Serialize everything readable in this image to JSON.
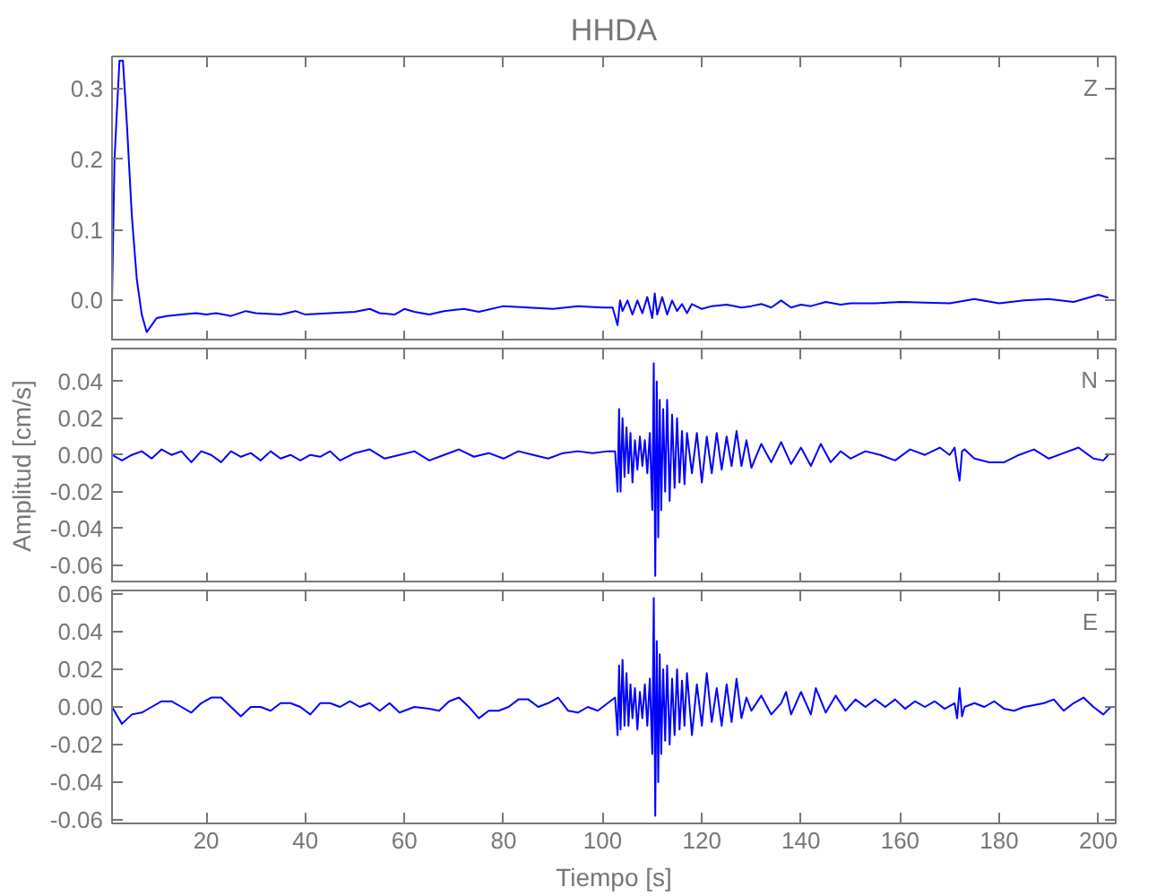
{
  "chart_data": [
    {
      "type": "line",
      "title": "HHDA",
      "annotations": [
        "Z"
      ],
      "color": "#0000ff",
      "tick_labels": "y",
      "xlim": [
        1,
        203.5
      ],
      "xticks": [
        20,
        40,
        60,
        80,
        100,
        120,
        140,
        160,
        180,
        200
      ],
      "ylim": [
        -0.058,
        0.346
      ],
      "yticks": [
        {
          "value": 0,
          "label": "0.0"
        },
        {
          "value": 0.1,
          "label": "0.1"
        },
        {
          "value": 0.2,
          "label": "0.2"
        },
        {
          "value": 0.3,
          "label": "0.3"
        }
      ],
      "x": [
        1,
        1.5,
        2.5,
        3.2,
        4,
        5,
        6,
        7,
        8,
        9,
        10,
        12,
        15,
        18,
        20,
        22,
        25,
        28,
        30,
        35,
        38,
        40,
        45,
        50,
        53,
        55,
        58,
        60,
        62,
        65,
        68,
        72,
        75,
        80,
        85,
        90,
        95,
        100,
        102,
        103,
        103.5,
        104,
        105,
        106,
        107,
        108,
        109,
        110,
        110.5,
        111,
        112,
        113,
        114,
        115,
        116,
        117,
        118,
        120,
        122,
        125,
        128,
        130,
        132,
        134,
        136,
        138,
        140,
        142,
        145,
        148,
        150,
        155,
        160,
        165,
        170,
        175,
        180,
        185,
        190,
        195,
        200,
        202
      ],
      "values": [
        0.0,
        0.2,
        0.34,
        0.34,
        0.25,
        0.12,
        0.03,
        -0.02,
        -0.045,
        -0.035,
        -0.025,
        -0.022,
        -0.02,
        -0.018,
        -0.02,
        -0.018,
        -0.022,
        -0.015,
        -0.018,
        -0.02,
        -0.015,
        -0.02,
        -0.018,
        -0.016,
        -0.012,
        -0.018,
        -0.02,
        -0.012,
        -0.016,
        -0.02,
        -0.015,
        -0.012,
        -0.016,
        -0.008,
        -0.01,
        -0.012,
        -0.008,
        -0.01,
        -0.01,
        -0.035,
        0.0,
        -0.015,
        0.0,
        -0.02,
        0.0,
        -0.018,
        0.005,
        -0.025,
        0.01,
        -0.02,
        0.005,
        -0.02,
        0.0,
        -0.015,
        -0.005,
        -0.018,
        -0.005,
        -0.012,
        -0.008,
        -0.006,
        -0.01,
        -0.008,
        -0.005,
        -0.01,
        0.0,
        -0.01,
        -0.006,
        -0.008,
        -0.002,
        -0.006,
        -0.004,
        -0.004,
        -0.002,
        -0.003,
        -0.004,
        0.002,
        -0.004,
        0.0,
        0.002,
        -0.002,
        0.008,
        0.004
      ]
    },
    {
      "type": "line",
      "ylabel": "Amplitud [cm/s]",
      "annotations": [
        "N"
      ],
      "color": "#0000ff",
      "tick_labels": "y",
      "xlim": [
        1,
        203.5
      ],
      "xticks": [
        20,
        40,
        60,
        80,
        100,
        120,
        140,
        160,
        180,
        200
      ],
      "ylim": [
        -0.07,
        0.058
      ],
      "yticks": [
        {
          "value": -0.06,
          "label": "-0.06"
        },
        {
          "value": -0.04,
          "label": "-0.04"
        },
        {
          "value": -0.02,
          "label": "-0.02"
        },
        {
          "value": 0,
          "label": "0.00"
        },
        {
          "value": 0.02,
          "label": "0.02"
        },
        {
          "value": 0.04,
          "label": "0.04"
        }
      ],
      "x": [
        1,
        3,
        5,
        7,
        9,
        11,
        13,
        15,
        17,
        19,
        21,
        23,
        25,
        27,
        29,
        31,
        33,
        35,
        37,
        39,
        41,
        43,
        45,
        47,
        50,
        53,
        56,
        59,
        62,
        65,
        68,
        71,
        74,
        77,
        80,
        83,
        86,
        89,
        92,
        95,
        98,
        101,
        102.5,
        103,
        103.3,
        103.6,
        104,
        104.4,
        104.8,
        105.2,
        105.6,
        106,
        106.5,
        107,
        107.5,
        108,
        108.5,
        109,
        109.5,
        110,
        110.3,
        110.6,
        110.9,
        111.2,
        111.5,
        111.8,
        112.2,
        112.6,
        113,
        113.5,
        114,
        114.5,
        115,
        115.5,
        116,
        116.5,
        117,
        118,
        119,
        120,
        121,
        122,
        123,
        124,
        125,
        126,
        127,
        128,
        129,
        130,
        132,
        134,
        136,
        138,
        140,
        142,
        144,
        146,
        148,
        150,
        153,
        156,
        159,
        162,
        165,
        168,
        170,
        171,
        171.5,
        172,
        172.5,
        173,
        175,
        178,
        181,
        184,
        187,
        190,
        193,
        196,
        199,
        201,
        202
      ],
      "values": [
        0.0,
        -0.003,
        0.0,
        0.002,
        -0.002,
        0.003,
        0.0,
        0.002,
        -0.004,
        0.002,
        0.0,
        -0.004,
        0.002,
        -0.001,
        0.001,
        -0.003,
        0.002,
        -0.002,
        0.0,
        -0.003,
        0.0,
        -0.001,
        0.002,
        -0.003,
        0.001,
        0.003,
        -0.002,
        0.0,
        0.002,
        -0.003,
        0.0,
        0.003,
        -0.001,
        0.001,
        -0.002,
        0.002,
        0.0,
        -0.002,
        0.001,
        0.002,
        0.001,
        0.002,
        0.002,
        -0.02,
        0.025,
        -0.02,
        0.02,
        -0.012,
        0.015,
        -0.01,
        0.012,
        -0.015,
        0.008,
        -0.008,
        0.01,
        -0.006,
        0.008,
        -0.01,
        0.012,
        -0.03,
        0.05,
        -0.066,
        0.04,
        -0.045,
        0.03,
        -0.03,
        0.025,
        -0.02,
        0.03,
        -0.025,
        0.022,
        -0.018,
        0.02,
        -0.015,
        0.013,
        -0.016,
        0.012,
        -0.01,
        0.012,
        -0.015,
        0.01,
        -0.01,
        0.012,
        -0.008,
        0.01,
        -0.006,
        0.013,
        -0.006,
        0.008,
        -0.007,
        0.006,
        -0.004,
        0.007,
        -0.005,
        0.004,
        -0.006,
        0.006,
        -0.004,
        0.002,
        -0.002,
        0.002,
        0.0,
        -0.003,
        0.003,
        0.0,
        0.004,
        0.0,
        0.004,
        -0.006,
        -0.014,
        0.002,
        0.003,
        -0.002,
        -0.004,
        -0.004,
        0.0,
        0.003,
        -0.002,
        0.001,
        0.004,
        -0.002,
        -0.003,
        0.0
      ]
    },
    {
      "type": "line",
      "xlabel": "Tiempo [s]",
      "annotations": [
        "E"
      ],
      "color": "#0000ff",
      "xlim": [
        1,
        203.5
      ],
      "xticks": [
        20,
        40,
        60,
        80,
        100,
        120,
        140,
        160,
        180,
        200
      ],
      "ylim": [
        -0.062,
        0.062
      ],
      "yticks": [
        {
          "value": -0.06,
          "label": "-0.06"
        },
        {
          "value": -0.04,
          "label": "-0.04"
        },
        {
          "value": -0.02,
          "label": "-0.02"
        },
        {
          "value": 0,
          "label": "0.00"
        },
        {
          "value": 0.02,
          "label": "0.02"
        },
        {
          "value": 0.04,
          "label": "0.04"
        },
        {
          "value": 0.06,
          "label": "0.06"
        }
      ],
      "x": [
        1,
        3,
        5,
        7,
        9,
        11,
        13,
        15,
        17,
        19,
        21,
        23,
        25,
        27,
        29,
        31,
        33,
        35,
        37,
        39,
        41,
        43,
        45,
        47,
        49,
        51,
        53,
        55,
        57,
        59,
        62,
        65,
        67,
        69,
        71,
        73,
        75,
        77,
        79,
        81,
        83,
        85,
        87,
        89,
        91,
        93,
        95,
        97,
        99,
        101,
        102.5,
        103,
        103.3,
        103.6,
        104,
        104.4,
        104.8,
        105.2,
        105.6,
        106,
        106.5,
        107,
        107.5,
        108,
        108.5,
        109,
        109.5,
        110,
        110.3,
        110.6,
        110.9,
        111.2,
        111.5,
        111.8,
        112.2,
        112.6,
        113,
        113.5,
        114,
        114.5,
        115,
        115.5,
        116,
        116.5,
        117,
        118,
        119,
        120,
        121,
        122,
        123,
        124,
        125,
        126,
        127,
        128,
        129,
        130,
        132,
        134,
        136,
        137,
        138,
        140,
        142,
        143,
        145,
        147,
        149,
        151,
        153,
        155,
        157,
        159,
        161,
        163,
        165,
        167,
        169,
        171,
        171.5,
        172,
        172.5,
        173,
        175,
        177,
        179,
        181,
        183,
        185,
        187,
        189,
        191,
        193,
        195,
        197,
        199,
        201,
        202.5
      ],
      "values": [
        0.0,
        -0.009,
        -0.004,
        -0.003,
        0.0,
        0.003,
        0.003,
        0.0,
        -0.003,
        0.002,
        0.005,
        0.005,
        0.0,
        -0.005,
        0.0,
        0.0,
        -0.002,
        0.002,
        0.002,
        0.0,
        -0.004,
        0.002,
        0.002,
        0.0,
        0.003,
        0.0,
        0.002,
        -0.002,
        0.002,
        -0.003,
        0.0,
        -0.001,
        -0.002,
        0.003,
        0.005,
        0.0,
        -0.006,
        -0.002,
        -0.002,
        0.0,
        0.004,
        0.004,
        0.0,
        0.002,
        0.005,
        -0.002,
        -0.003,
        0.0,
        -0.002,
        0.002,
        0.005,
        -0.015,
        0.022,
        -0.012,
        0.025,
        -0.01,
        0.018,
        -0.01,
        0.012,
        -0.006,
        0.01,
        -0.012,
        0.008,
        -0.006,
        0.012,
        -0.01,
        0.015,
        -0.025,
        0.058,
        -0.058,
        0.035,
        -0.04,
        0.028,
        -0.025,
        0.02,
        -0.018,
        0.022,
        -0.02,
        0.015,
        -0.015,
        0.02,
        -0.012,
        0.014,
        -0.01,
        0.018,
        -0.015,
        0.012,
        -0.01,
        0.018,
        -0.008,
        0.01,
        -0.01,
        0.012,
        -0.008,
        0.015,
        -0.006,
        0.005,
        -0.002,
        0.006,
        -0.004,
        0.002,
        0.008,
        -0.004,
        0.008,
        -0.004,
        0.01,
        -0.003,
        0.006,
        -0.002,
        0.004,
        0.0,
        0.004,
        0.0,
        0.004,
        -0.001,
        0.003,
        0.0,
        0.003,
        -0.001,
        0.002,
        -0.006,
        0.01,
        -0.005,
        0.0,
        0.002,
        0.0,
        0.003,
        -0.001,
        -0.002,
        0.0,
        0.001,
        0.002,
        0.004,
        -0.002,
        0.002,
        0.005,
        0.0,
        -0.004,
        0.0
      ]
    }
  ]
}
